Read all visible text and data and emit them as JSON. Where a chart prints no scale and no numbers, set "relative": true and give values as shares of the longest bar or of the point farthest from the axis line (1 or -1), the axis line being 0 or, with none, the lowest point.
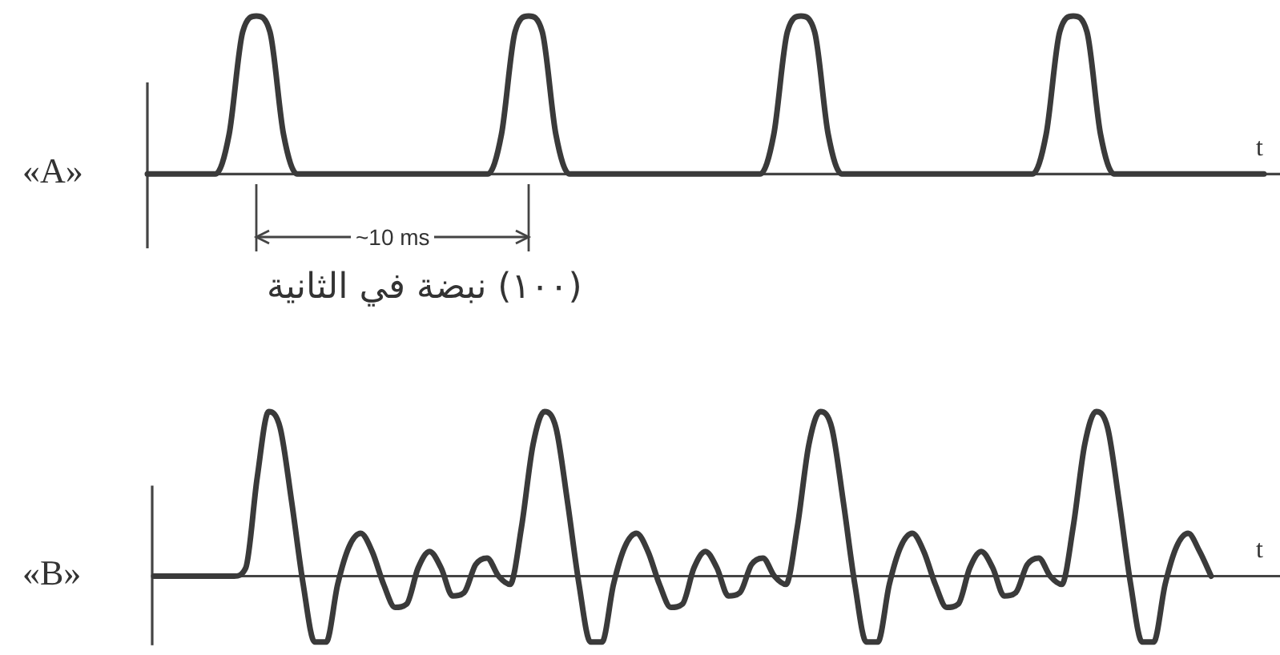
{
  "chart_data": [
    {
      "type": "line",
      "ylabel": "«A»",
      "xlabel": "t",
      "relative": true,
      "annotations": [
        "~10 ms",
        "(١٠٠) نبضة في الثانية"
      ],
      "categories": [
        null,
        null,
        null,
        null,
        null,
        null,
        null,
        null,
        null,
        null,
        null,
        null,
        null,
        null,
        null,
        null,
        null,
        null,
        null,
        null,
        null,
        null,
        null,
        null,
        null,
        null,
        null,
        null,
        null,
        null,
        null,
        null,
        null,
        null,
        null,
        null,
        null,
        null,
        null,
        null,
        null,
        null,
        null,
        null,
        null,
        null,
        null,
        null,
        null,
        null,
        null,
        null,
        null,
        null,
        null,
        null,
        null,
        null,
        null,
        null,
        null,
        null,
        null,
        null,
        null,
        null,
        null,
        null,
        null,
        null,
        null,
        null,
        null,
        null,
        null,
        null,
        null,
        null,
        null,
        null,
        null,
        null,
        null
      ],
      "series": [
        {
          "color": "#3a3a3a",
          "values": [
            0,
            0,
            0,
            0,
            0,
            0,
            0.25,
            0.9,
            1,
            0.9,
            0.25,
            0,
            0,
            0,
            0,
            0,
            0,
            0,
            0,
            0,
            0,
            0,
            0,
            0,
            0,
            0,
            0.25,
            0.9,
            1,
            0.9,
            0.25,
            0,
            0,
            0,
            0,
            0,
            0,
            0,
            0,
            0,
            0,
            0,
            0,
            0,
            0,
            0,
            0.25,
            0.9,
            1,
            0.9,
            0.25,
            0,
            0,
            0,
            0,
            0,
            0,
            0,
            0,
            0,
            0,
            0,
            0,
            0,
            0,
            0,
            0.25,
            0.9,
            1,
            0.9,
            0.25,
            0,
            0,
            0,
            0,
            0,
            0,
            0,
            0,
            0,
            0,
            0,
            0
          ]
        }
      ]
    },
    {
      "type": "line",
      "ylabel": "«B»",
      "xlabel": "t",
      "relative": true,
      "categories": [
        null,
        null,
        null,
        null,
        null,
        null,
        null,
        null,
        null,
        null,
        null,
        null,
        null,
        null,
        null,
        null,
        null,
        null,
        null,
        null,
        null,
        null,
        null,
        null,
        null,
        null,
        null,
        null,
        null,
        null,
        null,
        null,
        null,
        null,
        null,
        null,
        null,
        null,
        null,
        null,
        null,
        null,
        null,
        null,
        null,
        null,
        null,
        null,
        null,
        null,
        null,
        null,
        null,
        null,
        null,
        null,
        null,
        null,
        null,
        null,
        null,
        null,
        null,
        null,
        null,
        null,
        null,
        null,
        null,
        null,
        null,
        null,
        null,
        null,
        null,
        null,
        null,
        null,
        null,
        null,
        null,
        null,
        null,
        null,
        null,
        null,
        null,
        null,
        null,
        null,
        null,
        null,
        null
      ],
      "series": [
        {
          "color": "#3a3a3a",
          "values": [
            0,
            0,
            0,
            0,
            0,
            0,
            0,
            0,
            0.05,
            0.6,
            1,
            0.9,
            0.45,
            -0.05,
            -0.4,
            -0.4,
            -0.05,
            0.18,
            0.26,
            0.15,
            -0.05,
            -0.19,
            -0.17,
            0.05,
            0.15,
            0.05,
            -0.12,
            -0.1,
            0.07,
            0.11,
            0,
            -0.05,
            0.3,
            0.8,
            1,
            0.9,
            0.45,
            -0.05,
            -0.4,
            -0.4,
            -0.05,
            0.18,
            0.26,
            0.15,
            -0.05,
            -0.19,
            -0.17,
            0.05,
            0.15,
            0.05,
            -0.12,
            -0.1,
            0.07,
            0.11,
            0,
            -0.05,
            0.3,
            0.8,
            1,
            0.9,
            0.45,
            -0.05,
            -0.4,
            -0.4,
            -0.05,
            0.18,
            0.26,
            0.15,
            -0.05,
            -0.19,
            -0.17,
            0.05,
            0.15,
            0.05,
            -0.12,
            -0.1,
            0.07,
            0.11,
            0,
            -0.05,
            0.3,
            0.8,
            1,
            0.9,
            0.45,
            -0.05,
            -0.4,
            -0.4,
            -0.05,
            0.18,
            0.26,
            0.15,
            0
          ]
        }
      ]
    }
  ]
}
